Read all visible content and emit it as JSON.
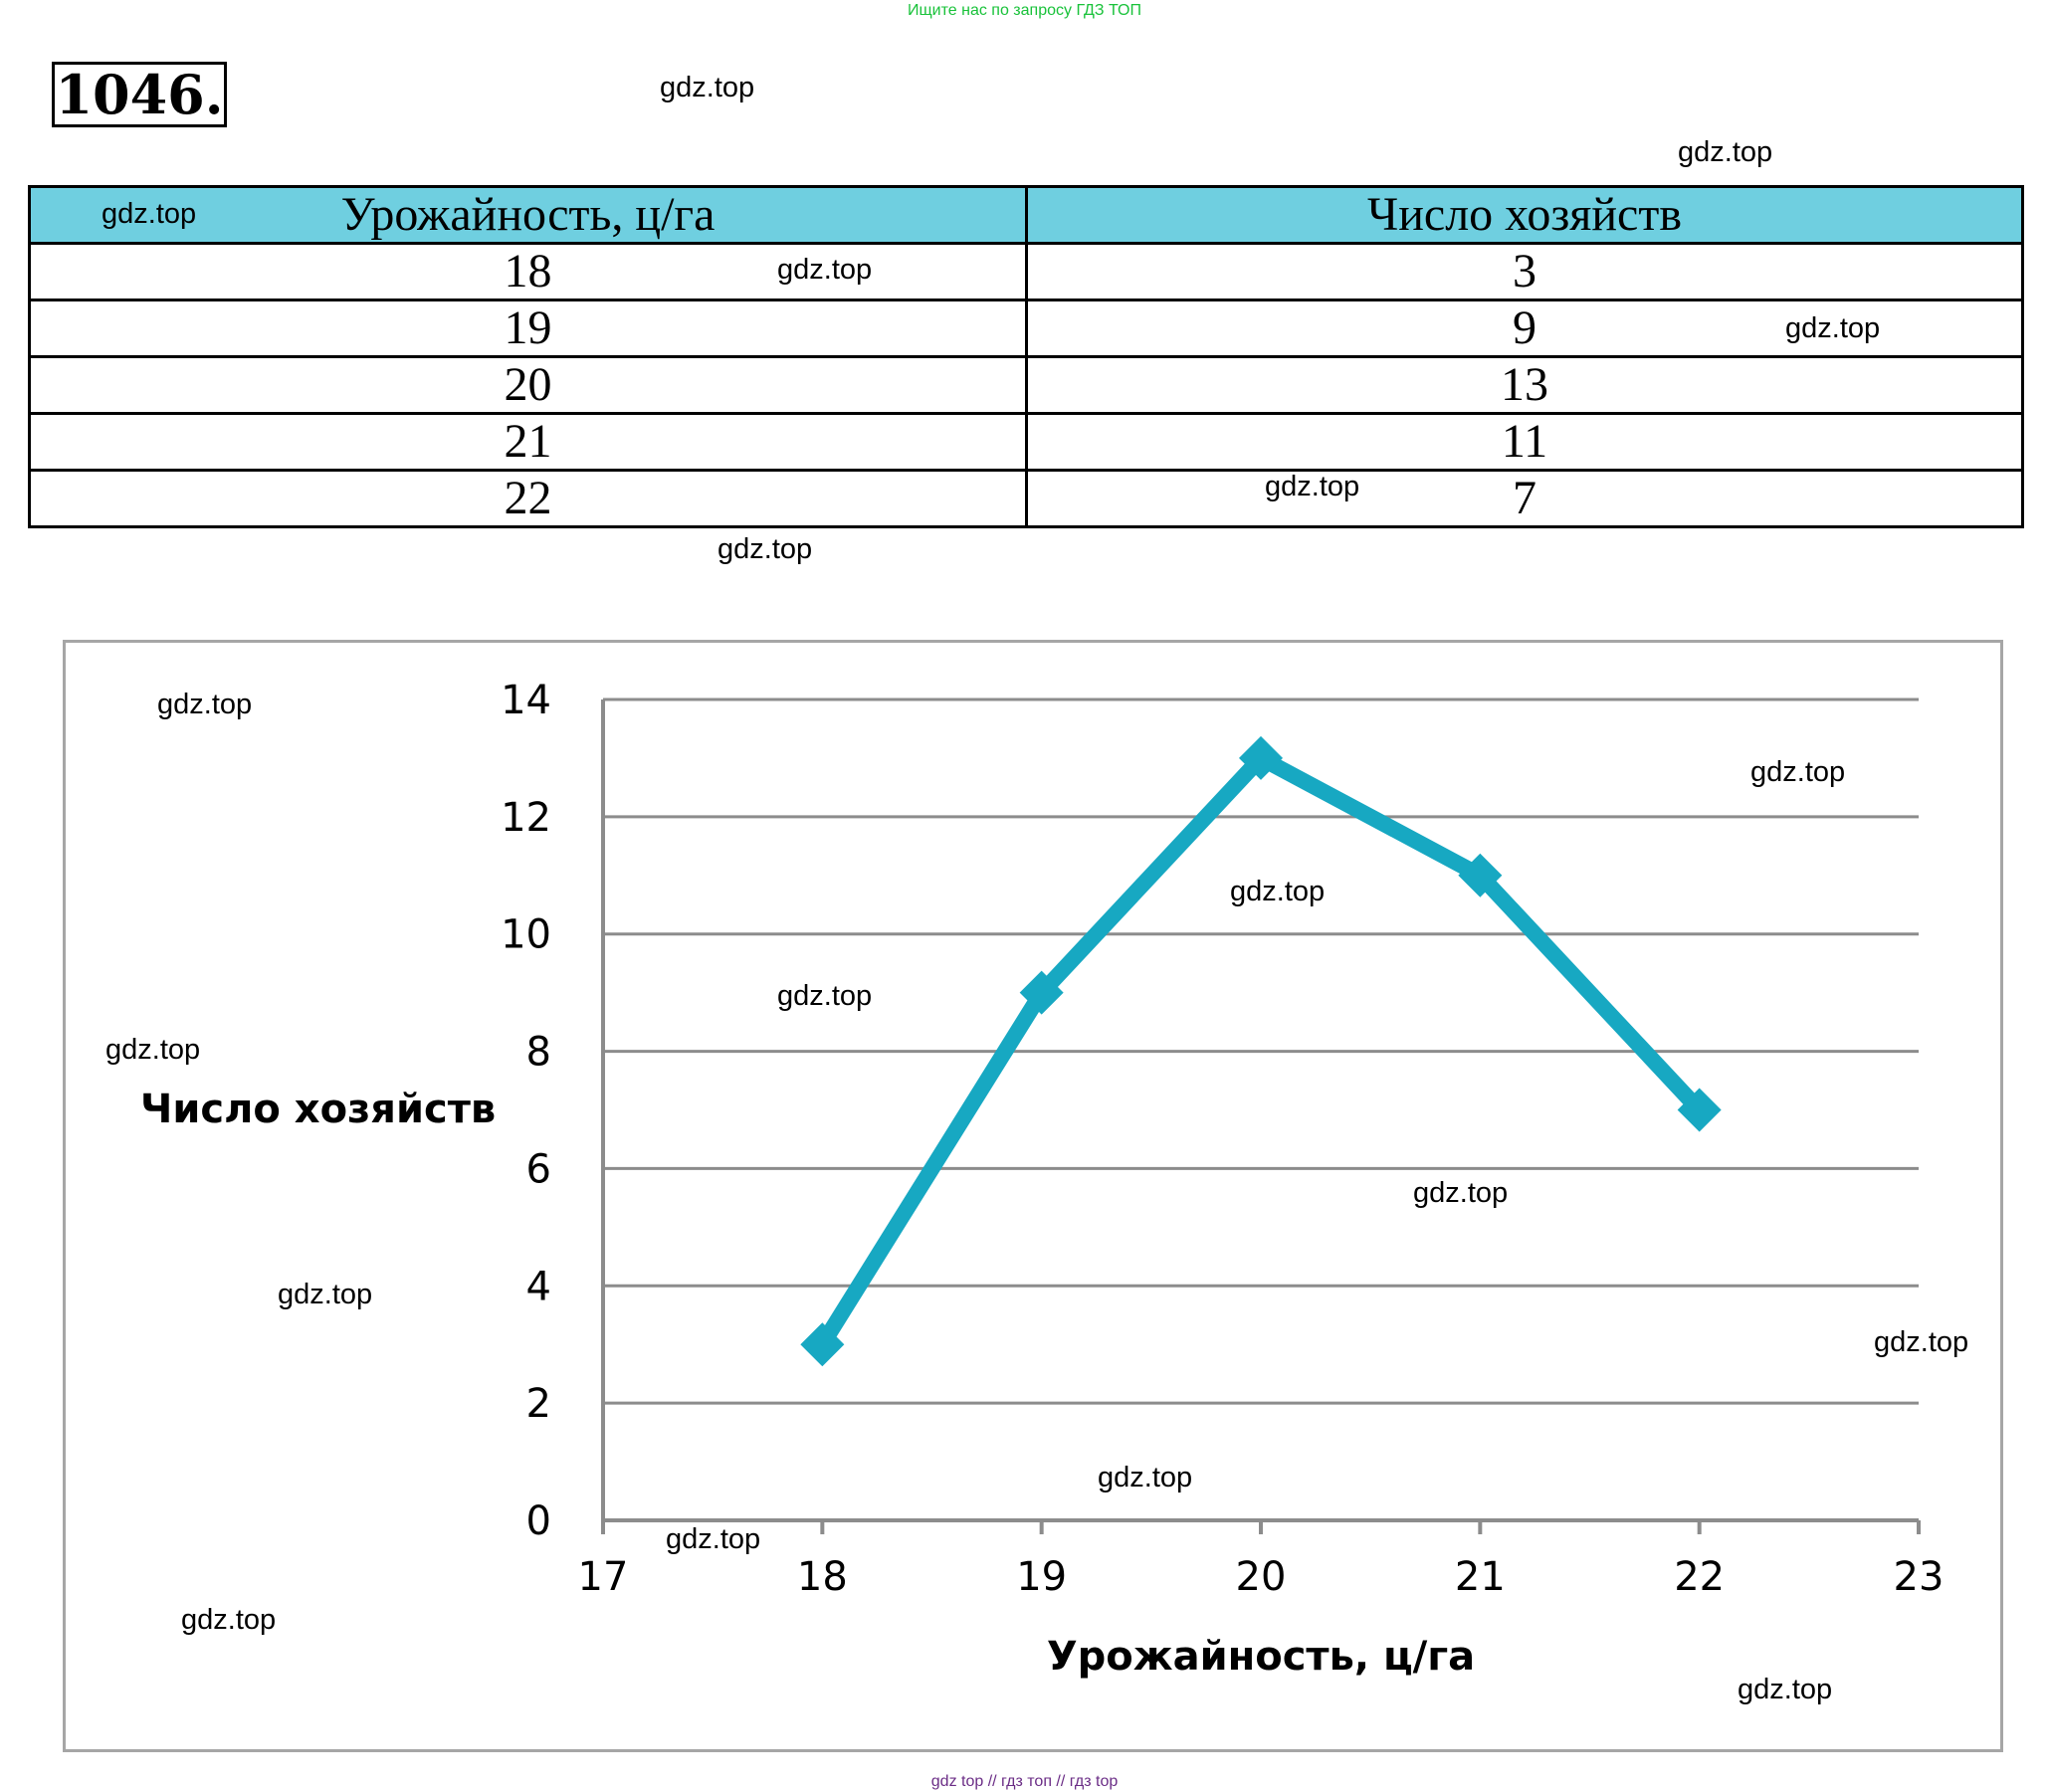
{
  "banner": "Ищите нас по запросу ГДЗ ТОП",
  "task_number": "1046.",
  "watermark": "gdz.top",
  "table": {
    "headers": [
      "Урожайность, ц/га",
      "Число хозяйств"
    ],
    "rows": [
      [
        "18",
        "3"
      ],
      [
        "19",
        "9"
      ],
      [
        "20",
        "13"
      ],
      [
        "21",
        "11"
      ],
      [
        "22",
        "7"
      ]
    ]
  },
  "chart_data": {
    "type": "line",
    "x": [
      18,
      19,
      20,
      21,
      22
    ],
    "series": [
      {
        "values": [
          3,
          9,
          13,
          11,
          7
        ]
      }
    ],
    "xlabel": "Урожайность,  ц/га",
    "ylabel": "Число хозяйств",
    "xlim": [
      17,
      23
    ],
    "ylim": [
      0,
      14
    ],
    "xticks": [
      17,
      18,
      19,
      20,
      21,
      22,
      23
    ],
    "yticks": [
      0,
      2,
      4,
      6,
      8,
      10,
      12,
      14
    ],
    "grid": "horizontal",
    "legend": "none",
    "color": "#17a8c2"
  },
  "footer": "gdz top  //  гдз топ  //  гдз top"
}
